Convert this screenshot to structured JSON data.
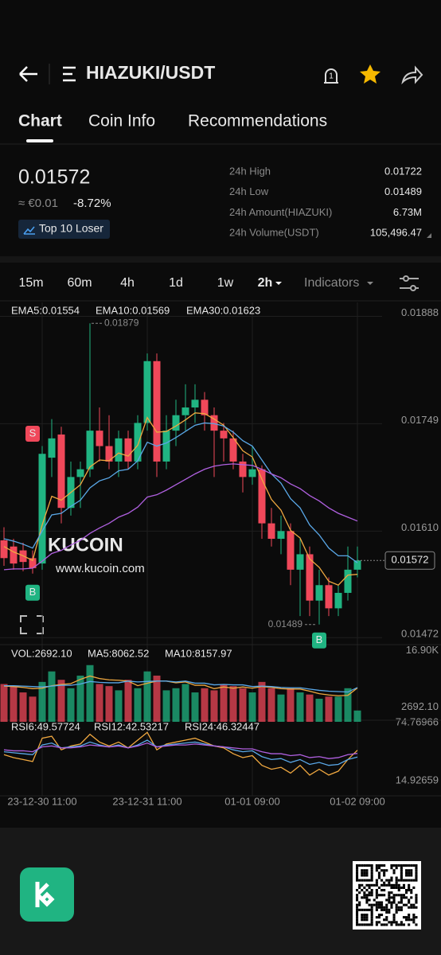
{
  "header": {
    "title": "HIAZUKI/USDT"
  },
  "tabs": [
    "Chart",
    "Coin Info",
    "Recommendations"
  ],
  "ticker": {
    "price": "0.01572",
    "fiat": "≈ €0.01",
    "change": "-8.72%",
    "badge": "Top 10 Loser"
  },
  "stats": [
    {
      "label": "24h High",
      "value": "0.01722"
    },
    {
      "label": "24h Low",
      "value": "0.01489"
    },
    {
      "label": "24h Amount(HIAZUKI)",
      "value": "6.73M"
    },
    {
      "label": "24h Volume(USDT)",
      "value": "105,496.47"
    }
  ],
  "timeframes": [
    "15m",
    "60m",
    "4h",
    "1d",
    "1w",
    "2h"
  ],
  "indicators": "Indicators",
  "watermark": {
    "brand": "KUCOIN",
    "url": "www.kucoin.com"
  },
  "chart_data": {
    "type": "candlestick",
    "up_color": "#20b482",
    "down_color": "#f0485a",
    "categories": [
      null,
      null,
      null,
      null,
      "23-12-30 11:00",
      null,
      null,
      null,
      null,
      null,
      null,
      null,
      null,
      null,
      null,
      "23-12-31 11:00",
      null,
      null,
      null,
      null,
      null,
      null,
      null,
      null,
      null,
      null,
      "01-01 09:00",
      null,
      null,
      null,
      null,
      null,
      null,
      null,
      null,
      null,
      null,
      "01-02 09:00"
    ],
    "open": [
      0.01598,
      0.0159,
      0.01585,
      0.01575,
      0.01568,
      0.01705,
      0.01735,
      0.0164,
      0.0168,
      0.0169,
      0.0174,
      0.0172,
      0.017,
      0.0173,
      0.017,
      0.0175,
      0.0183,
      0.017,
      0.0174,
      0.0176,
      0.0177,
      0.0178,
      0.0176,
      0.0174,
      0.0173,
      0.017,
      0.0168,
      0.0169,
      0.0162,
      0.016,
      0.0161,
      0.0156,
      0.0158,
      0.0152,
      0.0154,
      0.0151,
      0.0153,
      0.0156
    ],
    "high": [
      0.01615,
      0.016,
      0.01595,
      0.01585,
      0.0172,
      0.01755,
      0.01745,
      0.017,
      0.017,
      0.01879,
      0.0177,
      0.0176,
      0.0174,
      0.0174,
      0.0176,
      0.0184,
      0.0184,
      0.0176,
      0.0178,
      0.018,
      0.018,
      0.0179,
      0.0177,
      0.0175,
      0.0174,
      0.0171,
      0.0172,
      0.01695,
      0.0164,
      0.0163,
      0.0162,
      0.016,
      0.0159,
      0.0156,
      0.0155,
      0.0154,
      0.0159,
      0.0159
    ],
    "low": [
      0.01565,
      0.0156,
      0.01558,
      0.01555,
      0.0156,
      0.0168,
      0.0162,
      0.0163,
      0.0164,
      0.0168,
      0.017,
      0.0169,
      0.0168,
      0.0169,
      0.0169,
      0.0174,
      0.0168,
      0.0169,
      0.0172,
      0.0174,
      0.0175,
      0.0174,
      0.0168,
      0.017,
      0.0169,
      0.0166,
      0.0167,
      0.016,
      0.0159,
      0.0158,
      0.0154,
      0.015,
      0.015,
      0.01489,
      0.015,
      0.015,
      0.0152,
      0.0155
    ],
    "close": [
      0.01575,
      0.01568,
      0.0157,
      0.01562,
      0.0171,
      0.0173,
      0.0164,
      0.0168,
      0.0169,
      0.0174,
      0.0172,
      0.017,
      0.0173,
      0.017,
      0.0175,
      0.0183,
      0.017,
      0.0174,
      0.0176,
      0.0177,
      0.0178,
      0.0176,
      0.0174,
      0.0173,
      0.017,
      0.0168,
      0.0169,
      0.0162,
      0.016,
      0.0161,
      0.0156,
      0.0158,
      0.0152,
      0.0154,
      0.0151,
      0.0153,
      0.0156,
      0.01572
    ],
    "ylim": [
      0.01463,
      0.01906
    ],
    "yticks": [
      0.01888,
      0.01749,
      {
        "value": 0.0161,
        "label": "0.01610"
      },
      0.01472
    ],
    "last_price": 0.01572,
    "max_label": 0.01879,
    "min_label": 0.01489,
    "signals": [
      "S",
      "B",
      "B"
    ],
    "ema_series": [
      {
        "name": "EMA5:0.01554",
        "color": "#f0a840",
        "values": [
          0.0159,
          0.01583,
          0.01578,
          0.01572,
          0.01618,
          0.01655,
          0.0165,
          0.0166,
          0.0167,
          0.01693,
          0.01702,
          0.01701,
          0.01711,
          0.01707,
          0.01721,
          0.01757,
          0.01738,
          0.01739,
          0.01746,
          0.01754,
          0.01763,
          0.01762,
          0.01755,
          0.01747,
          0.01731,
          0.01714,
          0.01706,
          0.01677,
          0.01651,
          0.01637,
          0.01611,
          0.01601,
          0.01574,
          0.01563,
          0.01545,
          0.0154,
          0.01553,
          0.01554
        ]
      },
      {
        "name": "EMA10:0.01569",
        "color": "#5aa8e8",
        "values": [
          0.016,
          0.01597,
          0.01593,
          0.01588,
          0.0161,
          0.01631,
          0.01633,
          0.01642,
          0.0165,
          0.01666,
          0.01675,
          0.01679,
          0.01688,
          0.0169,
          0.01701,
          0.01725,
          0.0172,
          0.01724,
          0.01731,
          0.01739,
          0.01747,
          0.0175,
          0.01749,
          0.01746,
          0.01738,
          0.01727,
          0.0172,
          0.01702,
          0.01684,
          0.01672,
          0.01652,
          0.0164,
          0.01618,
          0.01605,
          0.01588,
          0.01578,
          0.01578,
          0.01569
        ]
      },
      {
        "name": "EMA30:0.01623",
        "color": "#b060e0",
        "values": [
          0.0156,
          0.01561,
          0.01561,
          0.01562,
          0.01571,
          0.01581,
          0.01585,
          0.01592,
          0.01598,
          0.01607,
          0.01614,
          0.0162,
          0.01628,
          0.01633,
          0.01641,
          0.01654,
          0.01657,
          0.01663,
          0.0167,
          0.01677,
          0.01684,
          0.0169,
          0.01694,
          0.01696,
          0.01697,
          0.01696,
          0.01695,
          0.0169,
          0.01684,
          0.01679,
          0.01671,
          0.01665,
          0.01656,
          0.01649,
          0.0164,
          0.01633,
          0.01628,
          0.01623
        ]
      }
    ],
    "volume": {
      "name": "VOL:2692.10",
      "color": "#20b482",
      "values": [
        9000,
        8500,
        7000,
        6000,
        9500,
        12000,
        10000,
        8000,
        11000,
        13500,
        9000,
        8500,
        7500,
        10000,
        8000,
        12000,
        11000,
        7500,
        8000,
        9000,
        7000,
        8000,
        7500,
        9000,
        8500,
        8000,
        7000,
        9500,
        8000,
        6500,
        8000,
        7000,
        6500,
        5500,
        6000,
        6000,
        8000,
        2692.1
      ],
      "ylim": [
        0,
        18000
      ],
      "yticks": [
        {
          "value": 16900,
          "label": "16.90K"
        },
        {
          "value": 2692.1,
          "label": "2692.10"
        }
      ],
      "ma": [
        {
          "name": "MA5:8062.52",
          "color": "#f0a840",
          "values": [
            8500,
            8400,
            8200,
            7900,
            8000,
            8600,
            8900,
            9100,
            10100,
            10900,
            10300,
            10000,
            9900,
            9700,
            8600,
            9200,
            9700,
            9700,
            9300,
            9500,
            8700,
            8700,
            7900,
            8300,
            8000,
            8300,
            8000,
            8400,
            8200,
            7900,
            7800,
            7800,
            7300,
            6700,
            6400,
            6200,
            6300,
            8062.52
          ]
        },
        {
          "name": "MA10:8157.97",
          "color": "#5aa8e8",
          "values": [
            8600,
            8600,
            8500,
            8400,
            8300,
            8500,
            8700,
            8700,
            9000,
            9600,
            9400,
            9300,
            9300,
            9700,
            9500,
            9600,
            9700,
            9700,
            9500,
            9700,
            9200,
            9200,
            8800,
            8900,
            8800,
            8800,
            8400,
            8500,
            8400,
            8200,
            8100,
            8100,
            7800,
            7500,
            7300,
            7200,
            7100,
            8157.97
          ]
        }
      ]
    },
    "rsi": {
      "ylim": [
        2.6,
        80.5
      ],
      "yticks": [
        74.76966,
        14.92659
      ],
      "series": [
        {
          "name": "RSI6:49.57724",
          "color": "#f0a840",
          "values": [
            45,
            42,
            40,
            38,
            62,
            64,
            50,
            54,
            56,
            66,
            58,
            54,
            58,
            52,
            60,
            68,
            50,
            56,
            58,
            60,
            62,
            58,
            54,
            52,
            46,
            42,
            44,
            34,
            30,
            32,
            26,
            34,
            24,
            30,
            24,
            28,
            40,
            49.57724
          ]
        },
        {
          "name": "RSI12:42.53217",
          "color": "#5aa8e8",
          "values": [
            48,
            47,
            46,
            45,
            55,
            57,
            52,
            53,
            54,
            58,
            55,
            53,
            55,
            52,
            55,
            60,
            53,
            55,
            56,
            57,
            58,
            56,
            54,
            53,
            50,
            48,
            49,
            43,
            40,
            41,
            37,
            40,
            35,
            37,
            34,
            35,
            40,
            42.53217
          ]
        },
        {
          "name": "RSI24:46.32447",
          "color": "#b060e0",
          "values": [
            50,
            49,
            49,
            48,
            53,
            54,
            52,
            52,
            53,
            55,
            54,
            53,
            54,
            52,
            54,
            57,
            53,
            54,
            55,
            55,
            56,
            55,
            54,
            53,
            52,
            51,
            51,
            48,
            46,
            46,
            44,
            45,
            42,
            43,
            41,
            42,
            45,
            46.32447
          ]
        }
      ]
    }
  }
}
